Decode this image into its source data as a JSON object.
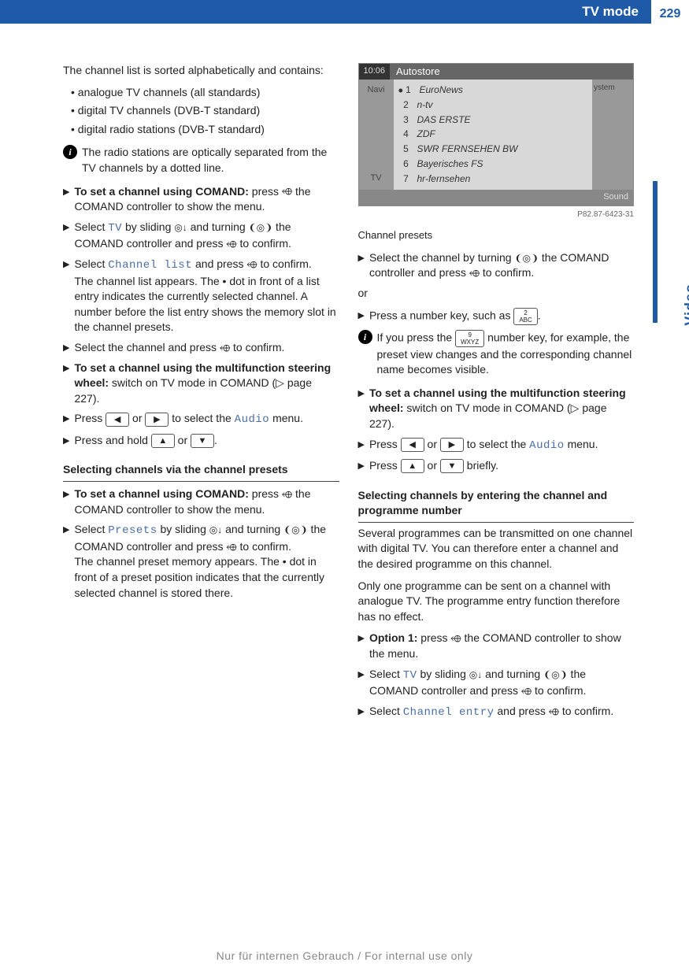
{
  "header": {
    "title": "TV mode",
    "page": "229"
  },
  "side_tab": "Video",
  "colors": {
    "brand": "#1e5aa8"
  },
  "left": {
    "intro": "The channel list is sorted alphabetically and contains:",
    "bullets": [
      "analogue TV channels (all standards)",
      "digital TV channels (DVB-T standard)",
      "digital radio stations (DVB-T standard)"
    ],
    "info1": "The radio stations are optically separated from the TV channels by a dotted line.",
    "s1a": "To set a channel using COMAND:",
    "s1b": " press ",
    "s1c": " the COMAND controller to show the menu.",
    "s2a": "Select ",
    "s2_tv": "TV",
    "s2b": " by sliding ",
    "s2c": " and turning ",
    "s2d": " the COMAND controller and press ",
    "s2e": " to confirm.",
    "s3a": "Select ",
    "s3_cl": "Channel list",
    "s3b": " and press ",
    "s3c": " to confirm.",
    "s3_body": "The channel list appears. The  •  dot in front of a list entry indicates the currently selected channel. A number before the list entry shows the memory slot in the channel presets.",
    "s4": "Select the channel and press ",
    "s4b": " to confirm.",
    "s5a": "To set a channel using the multifunction steering wheel:",
    "s5b": " switch on TV mode in COMAND (▷ page 227).",
    "s6a": "Press ",
    "s6b": " or ",
    "s6c": " to select the ",
    "s6_audio": "Audio",
    "s6d": " menu.",
    "s7a": "Press and hold ",
    "s7b": " or ",
    "s7c": ".",
    "subhead1": "Selecting channels via the channel presets",
    "p1a": "To set a channel using COMAND:",
    "p1b": " press ",
    "p1c": " the COMAND controller to show the menu.",
    "p2a": "Select ",
    "p2_presets": "Presets",
    "p2b": " by sliding ",
    "p2c": " and turning ",
    "p2d": " the COMAND controller and press ",
    "p2e": " to confirm.",
    "p2_body": "The channel preset memory appears. The  •  dot in front of a preset position indicates that the currently selected channel is stored there."
  },
  "right": {
    "screenshot": {
      "time": "10:06",
      "title": "Autostore",
      "left_labels": [
        "Navi",
        "TV"
      ],
      "right_labels": [
        "ystem"
      ],
      "bottom_right": "Sound",
      "caption": "P82.87-6423-31",
      "rows": [
        {
          "n": "1",
          "name": "EuroNews",
          "sel": true
        },
        {
          "n": "2",
          "name": "n-tv"
        },
        {
          "n": "3",
          "name": "DAS ERSTE"
        },
        {
          "n": "4",
          "name": "ZDF"
        },
        {
          "n": "5",
          "name": "SWR FERNSEHEN BW"
        },
        {
          "n": "6",
          "name": "Bayerisches FS"
        },
        {
          "n": "7",
          "name": "hr-fernsehen"
        }
      ]
    },
    "caption_below": "Channel presets",
    "r1a": "Select the channel by turning ",
    "r1b": " the COMAND controller and press ",
    "r1c": " to confirm.",
    "or": "or",
    "r2a": "Press a number key, such as ",
    "r2b": ".",
    "key2_top": "2",
    "key2_bot": "ABC",
    "info2a": "If you press the ",
    "key9_top": "9",
    "key9_bot": "WXYZ",
    "info2b": " number key, for example, the preset view changes and the corresponding channel name becomes visible.",
    "r3a": "To set a channel using the multifunction steering wheel:",
    "r3b": " switch on TV mode in COMAND (▷ page 227).",
    "r4a": "Press ",
    "r4b": " or ",
    "r4c": " to select the ",
    "r4_audio": "Audio",
    "r4d": " menu.",
    "r5a": "Press ",
    "r5b": " or ",
    "r5c": " briefly.",
    "subhead2": "Selecting channels by entering the channel and programme number",
    "para1": "Several programmes can be transmitted on one channel with digital TV. You can therefore enter a channel and the desired programme on this channel.",
    "para2": "Only one programme can be sent on a channel with analogue TV. The programme entry function therefore has no effect.",
    "o1a": "Option 1:",
    "o1b": " press ",
    "o1c": " the COMAND controller to show the menu.",
    "o2a": "Select ",
    "o2_tv": "TV",
    "o2b": " by sliding ",
    "o2c": " and turning ",
    "o2d": " the COMAND controller and press ",
    "o2e": " to confirm.",
    "o3a": "Select ",
    "o3_ce": "Channel entry",
    "o3b": " and press ",
    "o3c": " to confirm."
  },
  "footer": "Nur für internen Gebrauch / For internal use only"
}
